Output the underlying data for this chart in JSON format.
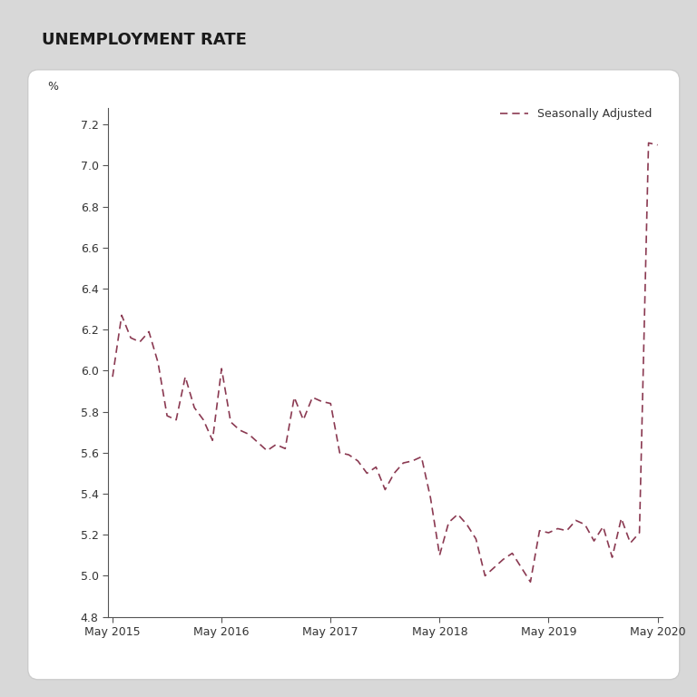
{
  "title": "UNEMPLOYMENT RATE",
  "pct_label": "%",
  "legend_label": "Seasonally Adjusted",
  "line_color": "#8B3A52",
  "background_color": "#ffffff",
  "outer_bg": "#d8d8d8",
  "ylim": [
    4.8,
    7.28
  ],
  "yticks": [
    4.8,
    5.0,
    5.2,
    5.4,
    5.6,
    5.8,
    6.0,
    6.2,
    6.4,
    6.6,
    6.8,
    7.0,
    7.2
  ],
  "xtick_labels": [
    "May 2015",
    "May 2016",
    "May 2017",
    "May 2018",
    "May 2019",
    "May 2020"
  ],
  "xtick_positions": [
    0,
    12,
    24,
    36,
    48,
    60
  ],
  "values": [
    5.97,
    6.27,
    6.16,
    6.14,
    6.19,
    6.04,
    5.78,
    5.76,
    5.97,
    5.82,
    5.76,
    5.66,
    6.01,
    5.75,
    5.71,
    5.69,
    5.65,
    5.61,
    5.64,
    5.62,
    5.87,
    5.76,
    5.87,
    5.85,
    5.84,
    5.6,
    5.59,
    5.56,
    5.5,
    5.53,
    5.42,
    5.5,
    5.55,
    5.56,
    5.58,
    5.38,
    5.1,
    5.26,
    5.3,
    5.25,
    5.18,
    5.0,
    5.04,
    5.08,
    5.11,
    5.04,
    4.97,
    5.22,
    5.21,
    5.23,
    5.22,
    5.27,
    5.25,
    5.17,
    5.24,
    5.09,
    5.28,
    5.16,
    5.21,
    7.11,
    7.1
  ]
}
